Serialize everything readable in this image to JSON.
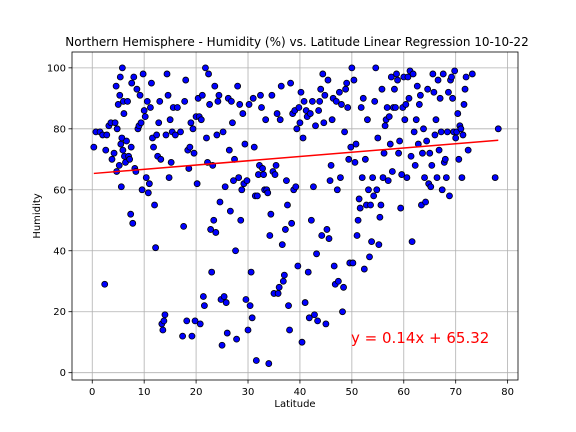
{
  "chart_data": {
    "type": "scatter",
    "title": "Northern Hemisphere - Humidity (%) vs. Latitude Linear Regression 10-10-22",
    "xlabel": "Latitude",
    "ylabel": "Humidity",
    "xlim": [
      -3.9,
      82.0
    ],
    "ylim": [
      -2.4,
      105.2
    ],
    "x_ticks": [
      0,
      10,
      20,
      30,
      40,
      50,
      60,
      70,
      80
    ],
    "y_ticks": [
      0,
      20,
      40,
      60,
      80,
      100
    ],
    "grid": true,
    "marker_color": "#0000ff",
    "marker_edge": "#000000",
    "regression": {
      "slope": 0.14,
      "intercept": 65.32,
      "x_range": [
        0.3,
        78.2
      ],
      "color": "#ff0000",
      "label": "y = 0.14x + 65.32"
    },
    "points": [
      [
        0.3,
        74
      ],
      [
        0.7,
        79
      ],
      [
        1.5,
        79
      ],
      [
        2,
        78
      ],
      [
        2.4,
        29
      ],
      [
        2.6,
        73
      ],
      [
        2.8,
        78
      ],
      [
        3.2,
        81
      ],
      [
        3.6,
        82
      ],
      [
        3.8,
        70
      ],
      [
        4.2,
        72
      ],
      [
        4.4,
        82
      ],
      [
        4.6,
        94
      ],
      [
        4.7,
        66
      ],
      [
        4.8,
        80
      ],
      [
        5,
        88
      ],
      [
        5.2,
        68
      ],
      [
        5.3,
        91
      ],
      [
        5.4,
        97
      ],
      [
        5.5,
        75
      ],
      [
        5.6,
        61
      ],
      [
        5.7,
        77
      ],
      [
        5.8,
        100
      ],
      [
        5.9,
        73
      ],
      [
        6,
        89
      ],
      [
        6.1,
        85
      ],
      [
        6.2,
        71
      ],
      [
        6.4,
        69
      ],
      [
        6.6,
        76
      ],
      [
        6.8,
        89
      ],
      [
        7,
        71
      ],
      [
        7.2,
        70
      ],
      [
        7.4,
        52
      ],
      [
        7.5,
        74
      ],
      [
        7.6,
        95
      ],
      [
        7.8,
        49
      ],
      [
        8,
        97
      ],
      [
        8.2,
        67
      ],
      [
        8.4,
        66
      ],
      [
        8.6,
        93
      ],
      [
        8.8,
        80
      ],
      [
        9,
        81
      ],
      [
        9.2,
        91
      ],
      [
        9.4,
        82
      ],
      [
        9.6,
        60
      ],
      [
        9.8,
        98
      ],
      [
        10,
        86
      ],
      [
        10.2,
        84
      ],
      [
        10.4,
        64
      ],
      [
        10.6,
        89
      ],
      [
        10.8,
        59
      ],
      [
        11,
        62
      ],
      [
        11.2,
        87
      ],
      [
        11.4,
        95
      ],
      [
        11.6,
        77
      ],
      [
        11.8,
        74
      ],
      [
        12,
        55
      ],
      [
        12.2,
        41
      ],
      [
        12.4,
        78
      ],
      [
        12.6,
        71
      ],
      [
        12.8,
        82
      ],
      [
        13,
        89
      ],
      [
        13.2,
        70
      ],
      [
        13.4,
        16
      ],
      [
        13.6,
        14
      ],
      [
        13.8,
        17
      ],
      [
        14,
        19
      ],
      [
        14.2,
        78
      ],
      [
        14.4,
        98
      ],
      [
        14.6,
        91
      ],
      [
        14.8,
        64
      ],
      [
        15,
        83
      ],
      [
        15.2,
        69
      ],
      [
        15.4,
        79
      ],
      [
        15.6,
        87
      ],
      [
        16,
        78
      ],
      [
        16.4,
        87
      ],
      [
        17,
        79
      ],
      [
        17.4,
        12
      ],
      [
        17.6,
        48
      ],
      [
        17.8,
        89
      ],
      [
        18,
        96
      ],
      [
        18.2,
        17
      ],
      [
        18.4,
        73
      ],
      [
        18.6,
        67
      ],
      [
        18.8,
        74
      ],
      [
        19,
        82
      ],
      [
        19.2,
        12
      ],
      [
        19.4,
        80
      ],
      [
        19.6,
        72
      ],
      [
        19.8,
        17
      ],
      [
        20,
        84
      ],
      [
        20.2,
        62
      ],
      [
        20.4,
        90
      ],
      [
        20.6,
        84
      ],
      [
        20.8,
        16
      ],
      [
        21,
        83
      ],
      [
        21.2,
        91
      ],
      [
        21.4,
        25
      ],
      [
        21.6,
        22
      ],
      [
        21.8,
        100
      ],
      [
        22,
        77
      ],
      [
        22.2,
        69
      ],
      [
        22.4,
        98
      ],
      [
        22.6,
        88
      ],
      [
        22.8,
        47
      ],
      [
        23,
        33
      ],
      [
        23.2,
        68
      ],
      [
        23.4,
        50
      ],
      [
        23.6,
        94
      ],
      [
        23.8,
        46
      ],
      [
        24,
        78
      ],
      [
        24.2,
        89
      ],
      [
        24.4,
        91
      ],
      [
        24.6,
        56
      ],
      [
        24.8,
        24
      ],
      [
        25,
        9
      ],
      [
        25.2,
        79
      ],
      [
        25.4,
        25
      ],
      [
        25.6,
        61
      ],
      [
        25.8,
        23
      ],
      [
        26,
        13
      ],
      [
        26.2,
        90
      ],
      [
        26.4,
        73
      ],
      [
        26.6,
        53
      ],
      [
        26.8,
        89
      ],
      [
        27,
        82
      ],
      [
        27.2,
        63
      ],
      [
        27.4,
        70
      ],
      [
        27.6,
        40
      ],
      [
        27.8,
        11
      ],
      [
        28,
        94
      ],
      [
        28.2,
        64
      ],
      [
        28.4,
        88
      ],
      [
        28.6,
        50
      ],
      [
        28.8,
        60
      ],
      [
        29,
        85
      ],
      [
        29.2,
        62
      ],
      [
        29.4,
        75
      ],
      [
        29.6,
        24
      ],
      [
        29.8,
        63
      ],
      [
        30,
        14
      ],
      [
        30.2,
        88
      ],
      [
        30.4,
        22
      ],
      [
        30.6,
        33
      ],
      [
        30.8,
        18
      ],
      [
        31,
        90
      ],
      [
        31.2,
        74
      ],
      [
        31.4,
        58
      ],
      [
        31.6,
        4
      ],
      [
        31.8,
        58
      ],
      [
        32,
        65
      ],
      [
        32.2,
        68
      ],
      [
        32.4,
        91
      ],
      [
        32.6,
        87
      ],
      [
        32.8,
        67
      ],
      [
        33,
        65
      ],
      [
        33.2,
        60
      ],
      [
        33.4,
        83
      ],
      [
        33.6,
        60
      ],
      [
        33.8,
        59
      ],
      [
        34,
        3
      ],
      [
        34.2,
        45
      ],
      [
        34.4,
        52
      ],
      [
        34.6,
        91
      ],
      [
        34.8,
        66
      ],
      [
        35,
        26
      ],
      [
        35.2,
        65
      ],
      [
        35.4,
        68
      ],
      [
        35.6,
        85
      ],
      [
        35.8,
        26
      ],
      [
        36,
        28
      ],
      [
        36.2,
        83
      ],
      [
        36.4,
        94
      ],
      [
        36.6,
        42
      ],
      [
        36.8,
        30
      ],
      [
        37,
        32
      ],
      [
        37.2,
        47
      ],
      [
        37.4,
        63
      ],
      [
        37.6,
        55
      ],
      [
        37.8,
        22
      ],
      [
        38,
        14
      ],
      [
        38.2,
        95
      ],
      [
        38.4,
        49
      ],
      [
        38.6,
        85
      ],
      [
        38.8,
        60
      ],
      [
        39,
        86
      ],
      [
        39.2,
        61
      ],
      [
        39.4,
        80
      ],
      [
        39.6,
        35
      ],
      [
        39.8,
        87
      ],
      [
        40,
        82
      ],
      [
        40.2,
        92
      ],
      [
        40.4,
        10
      ],
      [
        40.6,
        77
      ],
      [
        40.8,
        89
      ],
      [
        41,
        23
      ],
      [
        41.2,
        86
      ],
      [
        41.4,
        84
      ],
      [
        41.6,
        33
      ],
      [
        41.8,
        18
      ],
      [
        42,
        85
      ],
      [
        42.2,
        50
      ],
      [
        42.4,
        89
      ],
      [
        42.6,
        61
      ],
      [
        42.8,
        19
      ],
      [
        43,
        81
      ],
      [
        43.2,
        39
      ],
      [
        43.4,
        17
      ],
      [
        43.6,
        86
      ],
      [
        43.8,
        89
      ],
      [
        44,
        93
      ],
      [
        44.2,
        45
      ],
      [
        44.4,
        98
      ],
      [
        44.6,
        82
      ],
      [
        44.8,
        91
      ],
      [
        45,
        16
      ],
      [
        45.2,
        47
      ],
      [
        45.4,
        96
      ],
      [
        45.6,
        44
      ],
      [
        45.8,
        63
      ],
      [
        46,
        68
      ],
      [
        46.2,
        83
      ],
      [
        46.4,
        90
      ],
      [
        46.6,
        35
      ],
      [
        46.8,
        29
      ],
      [
        47,
        89
      ],
      [
        47.2,
        60
      ],
      [
        47.4,
        30
      ],
      [
        47.6,
        92
      ],
      [
        47.8,
        64
      ],
      [
        48,
        88
      ],
      [
        48.2,
        20
      ],
      [
        48.4,
        28
      ],
      [
        48.6,
        79
      ],
      [
        48.8,
        93
      ],
      [
        49,
        95
      ],
      [
        49.2,
        87
      ],
      [
        49.4,
        70
      ],
      [
        49.6,
        36
      ],
      [
        49.8,
        74
      ],
      [
        50,
        100
      ],
      [
        50.2,
        36
      ],
      [
        50.4,
        96
      ],
      [
        50.6,
        69
      ],
      [
        50.8,
        75
      ],
      [
        51,
        45
      ],
      [
        51.2,
        50
      ],
      [
        51.4,
        57
      ],
      [
        51.6,
        54
      ],
      [
        51.8,
        87
      ],
      [
        52,
        64
      ],
      [
        52.2,
        90
      ],
      [
        52.4,
        34
      ],
      [
        52.6,
        70
      ],
      [
        52.8,
        55
      ],
      [
        53,
        83
      ],
      [
        53.2,
        60
      ],
      [
        53.4,
        38
      ],
      [
        53.6,
        55
      ],
      [
        53.8,
        43
      ],
      [
        54,
        64
      ],
      [
        54.2,
        58
      ],
      [
        54.4,
        89
      ],
      [
        54.6,
        100
      ],
      [
        54.8,
        60
      ],
      [
        55,
        77
      ],
      [
        55.2,
        42
      ],
      [
        55.4,
        51
      ],
      [
        55.6,
        55
      ],
      [
        55.8,
        93
      ],
      [
        56,
        64
      ],
      [
        56.2,
        72
      ],
      [
        56.4,
        81
      ],
      [
        56.6,
        83
      ],
      [
        56.8,
        87
      ],
      [
        57,
        63
      ],
      [
        57.2,
        84
      ],
      [
        57.4,
        75
      ],
      [
        57.6,
        97
      ],
      [
        57.8,
        66
      ],
      [
        58,
        87
      ],
      [
        58.2,
        93
      ],
      [
        58.4,
        87
      ],
      [
        58.6,
        98
      ],
      [
        58.8,
        96
      ],
      [
        59,
        72
      ],
      [
        59.2,
        76
      ],
      [
        59.4,
        54
      ],
      [
        59.6,
        65
      ],
      [
        59.8,
        87
      ],
      [
        60,
        97
      ],
      [
        60.2,
        83
      ],
      [
        60.4,
        88
      ],
      [
        60.6,
        64
      ],
      [
        60.8,
        97
      ],
      [
        61,
        90
      ],
      [
        61.2,
        99
      ],
      [
        61.4,
        71
      ],
      [
        61.6,
        43
      ],
      [
        61.8,
        98
      ],
      [
        62,
        79
      ],
      [
        62.2,
        68
      ],
      [
        62.4,
        83
      ],
      [
        62.6,
        94
      ],
      [
        62.8,
        75
      ],
      [
        63,
        88
      ],
      [
        63.2,
        91
      ],
      [
        63.4,
        55
      ],
      [
        63.6,
        72
      ],
      [
        63.8,
        80
      ],
      [
        64,
        64
      ],
      [
        64.2,
        56
      ],
      [
        64.4,
        76
      ],
      [
        64.6,
        93
      ],
      [
        64.8,
        62
      ],
      [
        65,
        72
      ],
      [
        65.2,
        61
      ],
      [
        65.4,
        68
      ],
      [
        65.6,
        98
      ],
      [
        65.8,
        92
      ],
      [
        66,
        78
      ],
      [
        66.2,
        83
      ],
      [
        66.4,
        64
      ],
      [
        66.6,
        96
      ],
      [
        66.8,
        73
      ],
      [
        67,
        90
      ],
      [
        67.2,
        79
      ],
      [
        67.4,
        60
      ],
      [
        67.6,
        98
      ],
      [
        67.8,
        69
      ],
      [
        68,
        70
      ],
      [
        68.2,
        64
      ],
      [
        68.4,
        79
      ],
      [
        68.6,
        92
      ],
      [
        68.8,
        58
      ],
      [
        69,
        96
      ],
      [
        69.2,
        97
      ],
      [
        69.4,
        90
      ],
      [
        69.6,
        79
      ],
      [
        69.8,
        99
      ],
      [
        70,
        77
      ],
      [
        70.2,
        79
      ],
      [
        70.4,
        85
      ],
      [
        70.6,
        70
      ],
      [
        70.8,
        81
      ],
      [
        71,
        80
      ],
      [
        71.2,
        64
      ],
      [
        71.4,
        78
      ],
      [
        71.6,
        88
      ],
      [
        71.8,
        93
      ],
      [
        72,
        97
      ],
      [
        72.4,
        73
      ],
      [
        73.2,
        98
      ],
      [
        77.6,
        64
      ],
      [
        78.2,
        80
      ]
    ]
  }
}
